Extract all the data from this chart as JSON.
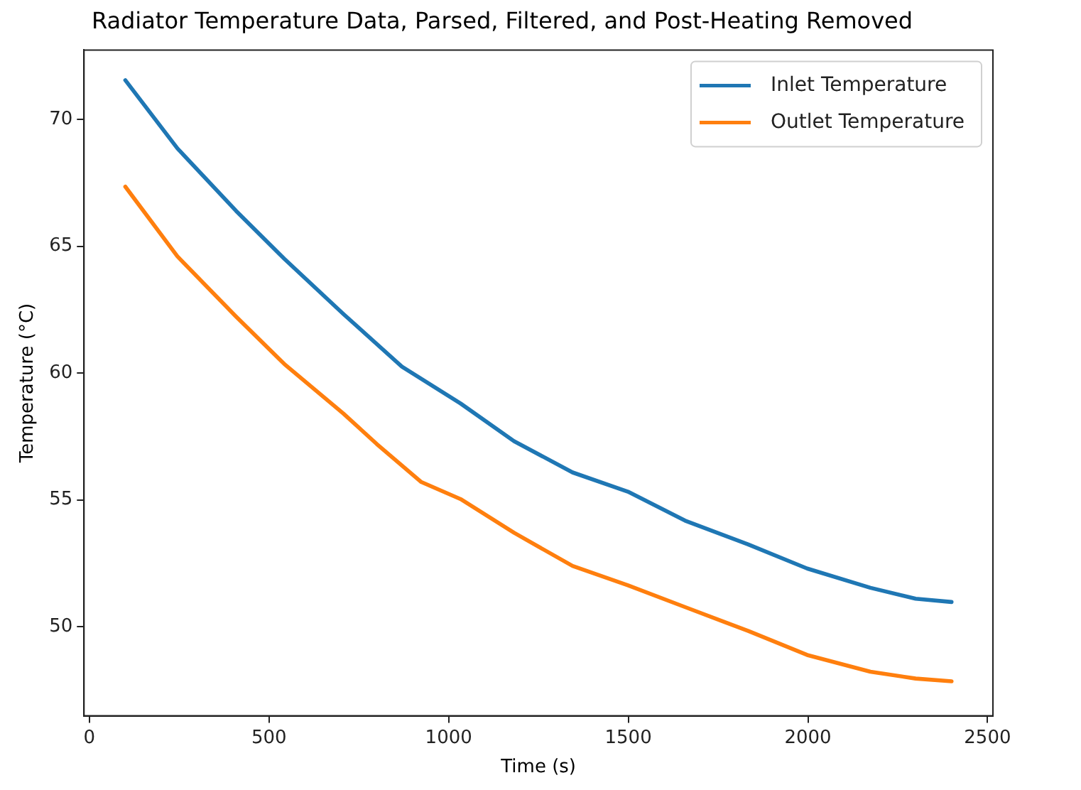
{
  "chart_data": {
    "type": "line",
    "title": "Radiator Temperature Data, Parsed, Filtered, and Post-Heating Removed",
    "xlabel": "Time (s)",
    "ylabel": "Temperature (°C)",
    "xlim": [
      -15,
      2515
    ],
    "xticks": [
      0,
      500,
      1000,
      1500,
      2000,
      2500
    ],
    "ylim": [
      46.48,
      72.74
    ],
    "yticks": [
      50,
      55,
      60,
      65,
      70
    ],
    "grid": false,
    "legend": "top right",
    "marker": "none",
    "line_style": "solid",
    "series": [
      {
        "name": "Inlet Temperature",
        "color": "#1f77b4",
        "x": [
          100,
          245,
          408,
          543,
          707,
          870,
          1033,
          1182,
          1345,
          1499,
          1658,
          1834,
          1998,
          2174,
          2300,
          2400
        ],
        "values": [
          71.55,
          68.86,
          66.4,
          64.5,
          62.33,
          60.25,
          58.8,
          57.31,
          56.08,
          55.32,
          54.18,
          53.24,
          52.29,
          51.53,
          51.1,
          50.97
        ]
      },
      {
        "name": "Outlet Temperature",
        "color": "#ff7f0e",
        "x": [
          100,
          245,
          408,
          543,
          707,
          800,
          924,
          1033,
          1182,
          1345,
          1499,
          1658,
          1834,
          1998,
          2174,
          2300,
          2400
        ],
        "values": [
          67.35,
          64.6,
          62.23,
          60.35,
          58.4,
          57.2,
          55.7,
          55.03,
          53.7,
          52.39,
          51.63,
          50.77,
          49.83,
          48.88,
          48.22,
          47.95,
          47.84
        ]
      }
    ]
  }
}
